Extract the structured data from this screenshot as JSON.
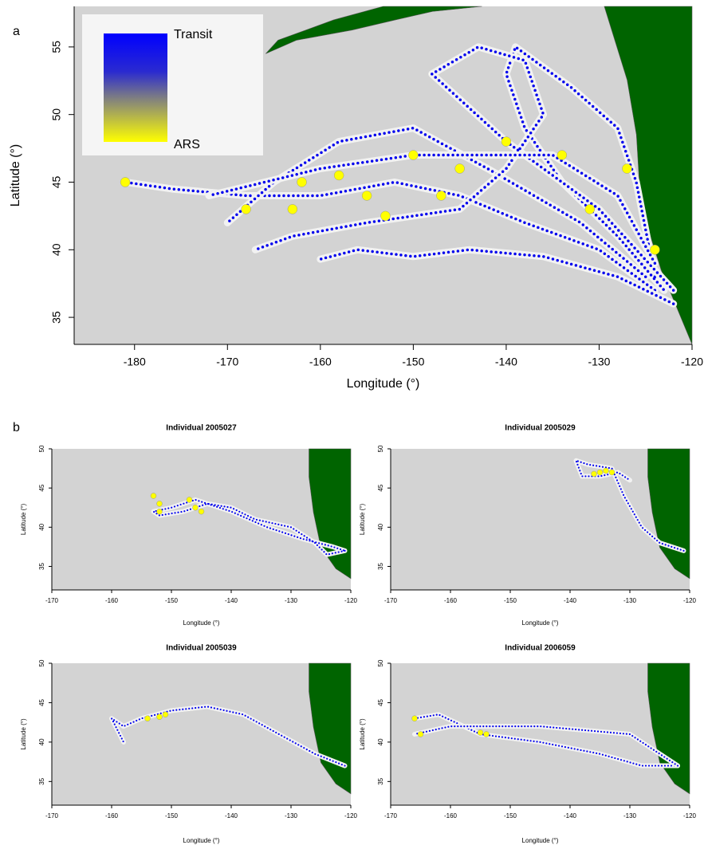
{
  "chart_data": [
    {
      "type": "map",
      "panel_label": "a",
      "xlabel": "Longitude (°)",
      "ylabel": "Latitude (°)",
      "xlim": [
        -186.5,
        -120
      ],
      "ylim": [
        33,
        58
      ],
      "xticks": [
        -180,
        -170,
        -160,
        -150,
        -140,
        -130,
        -120
      ],
      "yticks": [
        35,
        40,
        45,
        50,
        55
      ],
      "colorbar": {
        "top_label": "Transit",
        "bottom_label": "ARS",
        "colors": [
          "#0000ff",
          "#ffff00"
        ]
      },
      "tracks": [
        {
          "color": "#0000ee",
          "x": [
            -124,
            -130,
            -138,
            -145,
            -152,
            -160,
            -168,
            -176,
            -181
          ],
          "y": [
            37,
            40,
            42,
            44,
            45,
            44,
            44,
            44.5,
            45
          ]
        },
        {
          "color": "#0000ee",
          "x": [
            -122,
            -128,
            -136,
            -144,
            -150,
            -156,
            -160
          ],
          "y": [
            36,
            38,
            39.5,
            40,
            39.5,
            40,
            39.3
          ]
        },
        {
          "color": "#0000ee",
          "x": [
            -124,
            -126,
            -128,
            -133,
            -139,
            -140,
            -138,
            -134,
            -128,
            -123
          ],
          "y": [
            38,
            45,
            49,
            52,
            55,
            53,
            49,
            45,
            41,
            37
          ]
        },
        {
          "color": "#0000ee",
          "x": [
            -125,
            -132,
            -142,
            -150,
            -158,
            -165,
            -170
          ],
          "y": [
            38,
            42,
            46,
            49,
            48,
            45,
            42
          ]
        },
        {
          "color": "#0000ee",
          "x": [
            -122,
            -130,
            -140,
            -148,
            -143,
            -138,
            -136,
            -140,
            -145,
            -155,
            -163,
            -167
          ],
          "y": [
            37,
            43,
            48,
            53,
            55,
            54,
            50,
            46,
            43,
            42,
            41,
            40
          ]
        },
        {
          "color": "#0000ee",
          "x": [
            -124,
            -128,
            -135,
            -150,
            -160,
            -172
          ],
          "y": [
            39,
            44,
            47,
            47,
            46,
            44
          ]
        }
      ],
      "ars_points": {
        "color": "#ffff00",
        "x": [
          -162,
          -155,
          -153,
          -150,
          -140,
          -134,
          -127,
          -168,
          -181,
          -163,
          -147,
          -124,
          -131,
          -145,
          -158
        ],
        "y": [
          45,
          44,
          42.5,
          47,
          48,
          47,
          46,
          43,
          45,
          43,
          44,
          40,
          43,
          46,
          45.5
        ]
      }
    },
    {
      "type": "map",
      "panel_label": "b",
      "title": "Individual 2005027",
      "xlabel": "Longitude (°)",
      "ylabel": "Latitude (°)",
      "xlim": [
        -170,
        -120
      ],
      "ylim": [
        32,
        50
      ],
      "xticks": [
        -170,
        -160,
        -150,
        -140,
        -130,
        -120
      ],
      "yticks": [
        35,
        40,
        45,
        50
      ],
      "tracks": [
        {
          "color": "#0000ee",
          "x": [
            -121,
            -124,
            -126,
            -130,
            -136,
            -140,
            -144,
            -148,
            -152,
            -153,
            -150,
            -146,
            -140,
            -134,
            -128,
            -123,
            -121
          ],
          "y": [
            37,
            36.5,
            38,
            40,
            41,
            42.5,
            43,
            42,
            41.5,
            42,
            42.5,
            43.5,
            42,
            40,
            38.5,
            37.5,
            37
          ]
        }
      ],
      "ars_points": {
        "color": "#ffff00",
        "x": [
          -153,
          -152,
          -152,
          -147,
          -146,
          -145
        ],
        "y": [
          44,
          43,
          42,
          43.5,
          42.5,
          42
        ]
      }
    },
    {
      "type": "map",
      "title": "Individual 2005029",
      "xlabel": "Longitude (°)",
      "ylabel": "Latitude (°)",
      "xlim": [
        -170,
        -120
      ],
      "ylim": [
        32,
        50
      ],
      "xticks": [
        -170,
        -160,
        -150,
        -140,
        -130,
        -120
      ],
      "yticks": [
        35,
        40,
        45,
        50
      ],
      "tracks": [
        {
          "color": "#0000ee",
          "x": [
            -121,
            -125,
            -128,
            -131,
            -133,
            -137,
            -139,
            -138,
            -135,
            -132,
            -130
          ],
          "y": [
            37,
            38,
            40,
            44,
            47.5,
            48,
            48.5,
            46.5,
            46.5,
            47,
            46
          ]
        }
      ],
      "ars_points": {
        "color": "#ffff00",
        "x": [
          -135,
          -134,
          -133,
          -136
        ],
        "y": [
          47,
          47.2,
          47,
          46.8
        ]
      }
    },
    {
      "type": "map",
      "title": "Individual 2005039",
      "xlabel": "Longitude (°)",
      "ylabel": "Latitude (°)",
      "xlim": [
        -170,
        -120
      ],
      "ylim": [
        32,
        50
      ],
      "xticks": [
        -170,
        -160,
        -150,
        -140,
        -130,
        -120
      ],
      "yticks": [
        35,
        40,
        45,
        50
      ],
      "tracks": [
        {
          "color": "#0000ee",
          "x": [
            -121,
            -126,
            -132,
            -138,
            -144,
            -150,
            -155,
            -158,
            -160,
            -158
          ],
          "y": [
            37,
            38.5,
            41,
            43.5,
            44.5,
            44,
            43,
            42,
            43,
            40
          ]
        }
      ],
      "ars_points": {
        "color": "#ffff00",
        "x": [
          -154,
          -152,
          -151
        ],
        "y": [
          43,
          43.2,
          43.5
        ]
      }
    },
    {
      "type": "map",
      "title": "Individual 2006059",
      "xlabel": "Longitude (°)",
      "ylabel": "Latitude (°)",
      "xlim": [
        -170,
        -120
      ],
      "ylim": [
        32,
        50
      ],
      "xticks": [
        -170,
        -160,
        -150,
        -140,
        -130,
        -120
      ],
      "yticks": [
        35,
        40,
        45,
        50
      ],
      "tracks": [
        {
          "color": "#0000ee",
          "x": [
            -122,
            -128,
            -135,
            -145,
            -155,
            -162,
            -166
          ],
          "y": [
            37,
            37,
            38.5,
            40,
            41,
            43.5,
            43
          ]
        },
        {
          "color": "#0000ee",
          "x": [
            -122,
            -130,
            -145,
            -160,
            -166
          ],
          "y": [
            37,
            41,
            42,
            42,
            41
          ]
        }
      ],
      "ars_points": {
        "color": "#ffff00",
        "x": [
          -166,
          -165,
          -155,
          -154
        ],
        "y": [
          43,
          41,
          41.2,
          41
        ]
      }
    }
  ]
}
